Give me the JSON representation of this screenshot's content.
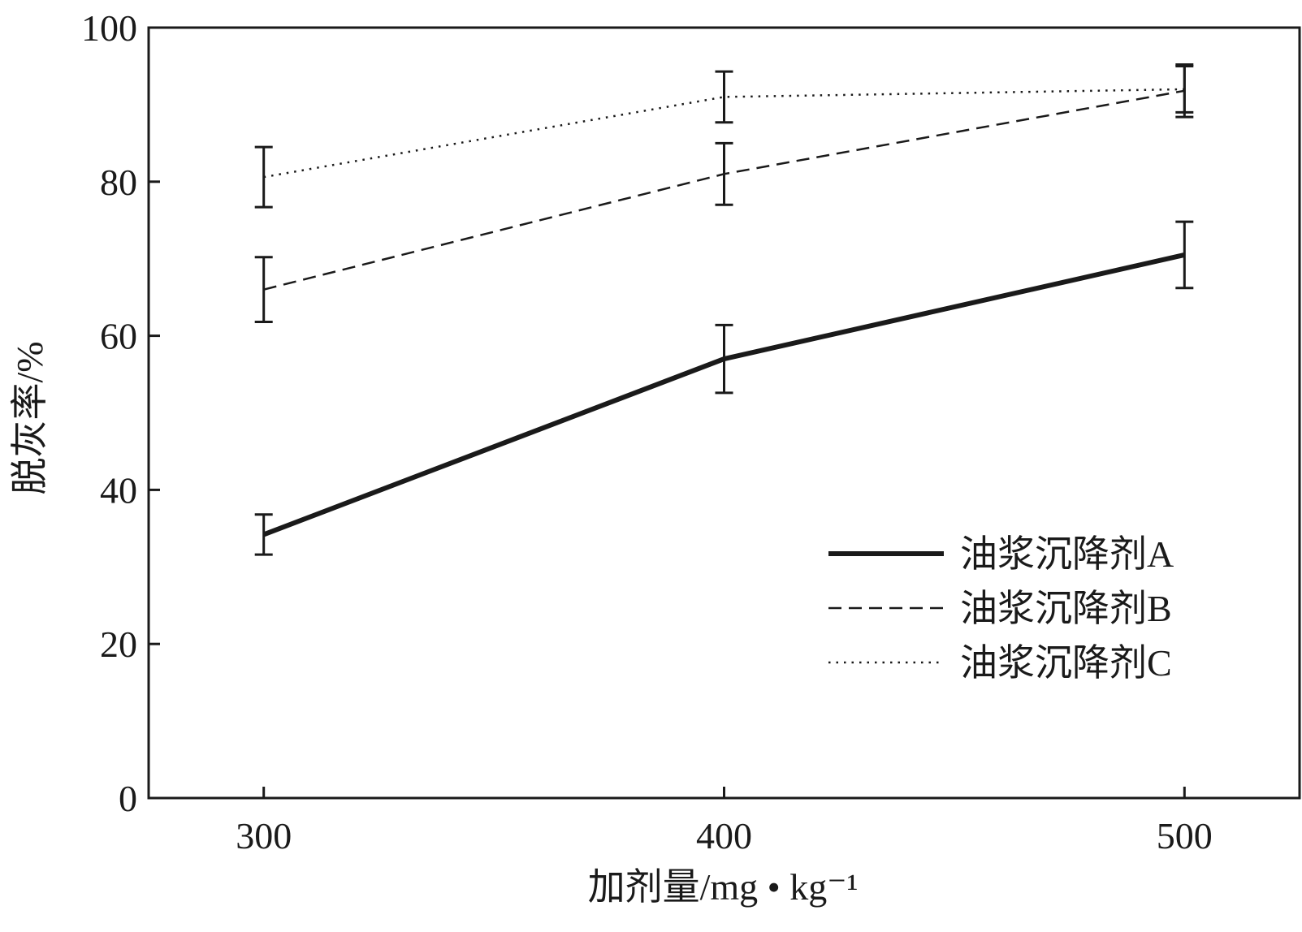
{
  "chart_data": {
    "type": "line",
    "xlabel": "加剂量/mg • kg⁻¹",
    "ylabel": "脱灰率/%",
    "x": [
      300,
      400,
      500
    ],
    "xlim": [
      275,
      525
    ],
    "ylim": [
      0,
      100
    ],
    "xticks": [
      "300",
      "400",
      "500"
    ],
    "yticks": [
      "0",
      "20",
      "40",
      "60",
      "80",
      "100"
    ],
    "grid": false,
    "legend_position": "lower-right",
    "series": [
      {
        "name": "油浆沉降剂A",
        "style": "solid",
        "values": [
          34.2,
          57.0,
          70.5
        ],
        "errors": [
          2.6,
          4.4,
          4.3
        ]
      },
      {
        "name": "油浆沉降剂B",
        "style": "dashed",
        "values": [
          66.0,
          81.0,
          91.8
        ],
        "errors": [
          4.2,
          4.0,
          3.4
        ]
      },
      {
        "name": "油浆沉降剂C",
        "style": "dotted",
        "values": [
          80.6,
          91.0,
          92.0
        ],
        "errors": [
          3.9,
          3.3,
          3.0
        ]
      }
    ],
    "colors": {
      "ink": "#1a1a1a",
      "background": "#ffffff"
    }
  }
}
